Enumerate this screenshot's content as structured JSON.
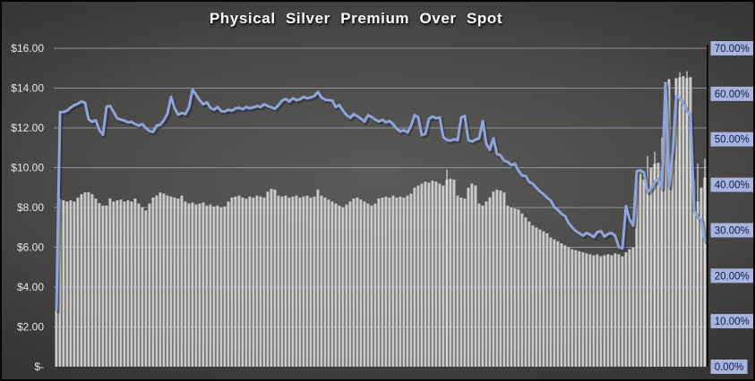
{
  "title": "Physical Silver Premium Over Spot",
  "colors": {
    "background_center": "#5b5a58",
    "background_edge": "#232322",
    "bar_fill": "#cac9c7",
    "bar_fill_light": "#dbdad8",
    "bar_fill_dark": "#b7b6b4",
    "wick_fill": "#e6e6e4",
    "line": "#8fa4d9",
    "line_shadow": "#1d2230",
    "gridline": "#c3cce9",
    "plot_border": "#0d0d0d",
    "title_text": "#fdfdfd",
    "left_tick_text": "#e8e8e8",
    "right_tick_text": "#131c38",
    "right_tick_chip": "#a6b4df"
  },
  "chart_data": {
    "type": "combo-bar-line",
    "title": "Physical Silver Premium Over Spot",
    "legend": "none",
    "grid": "horizontal",
    "left_axis": {
      "side": "left",
      "format": "USD",
      "range": [
        0,
        16
      ],
      "ticks": [
        {
          "label": "$16.00",
          "value": 16
        },
        {
          "label": "$14.00",
          "value": 14
        },
        {
          "label": "$12.00",
          "value": 12
        },
        {
          "label": "$10.00",
          "value": 10
        },
        {
          "label": "$8.00",
          "value": 8
        },
        {
          "label": "$6.00",
          "value": 6
        },
        {
          "label": "$4.00",
          "value": 4
        },
        {
          "label": "$2.00",
          "value": 2
        },
        {
          "label": "$-",
          "value": 0
        }
      ]
    },
    "right_axis": {
      "side": "right",
      "format": "percent",
      "range": [
        0,
        70
      ],
      "ticks": [
        {
          "label": "70.00%",
          "value": 70
        },
        {
          "label": "60.00%",
          "value": 60
        },
        {
          "label": "50.00%",
          "value": 50
        },
        {
          "label": "40.00%",
          "value": 40
        },
        {
          "label": "30.00%",
          "value": 30
        },
        {
          "label": "20.00%",
          "value": 20
        },
        {
          "label": "10.00%",
          "value": 10
        },
        {
          "label": "0.00%",
          "value": 0
        }
      ]
    },
    "bar_series_usd": [
      2.9,
      8.45,
      8.36,
      8.3,
      8.36,
      8.3,
      8.5,
      8.67,
      8.76,
      8.76,
      8.67,
      8.45,
      8.22,
      8.1,
      8.1,
      8.45,
      8.3,
      8.36,
      8.4,
      8.3,
      8.36,
      8.3,
      8.45,
      8.2,
      8.0,
      7.85,
      8.2,
      8.5,
      8.6,
      8.76,
      8.7,
      8.6,
      8.55,
      8.5,
      8.45,
      8.6,
      8.3,
      8.2,
      8.25,
      8.15,
      8.2,
      8.25,
      8.1,
      8.15,
      8.05,
      8.1,
      8.0,
      8.05,
      8.3,
      8.5,
      8.55,
      8.6,
      8.5,
      8.45,
      8.55,
      8.5,
      8.6,
      8.55,
      8.5,
      8.8,
      8.94,
      8.9,
      8.6,
      8.55,
      8.6,
      8.5,
      8.55,
      8.6,
      8.5,
      8.55,
      8.6,
      8.5,
      8.55,
      8.9,
      8.6,
      8.5,
      8.4,
      8.3,
      8.2,
      8.1,
      8.0,
      8.15,
      8.3,
      8.45,
      8.5,
      8.4,
      8.3,
      8.2,
      8.1,
      8.2,
      8.45,
      8.5,
      8.55,
      8.5,
      8.6,
      8.5,
      8.55,
      8.5,
      8.6,
      8.7,
      9.0,
      9.1,
      9.2,
      9.3,
      9.25,
      9.35,
      9.3,
      9.2,
      9.1,
      9.4,
      9.45,
      9.4,
      8.6,
      8.5,
      8.45,
      9.0,
      9.2,
      9.1,
      8.2,
      8.1,
      8.3,
      8.5,
      8.8,
      8.9,
      8.85,
      8.75,
      8.1,
      8.0,
      7.95,
      7.9,
      7.7,
      7.5,
      7.3,
      7.1,
      7.0,
      6.9,
      6.8,
      6.7,
      6.5,
      6.4,
      6.3,
      6.2,
      6.1,
      6.0,
      5.9,
      5.85,
      5.8,
      5.75,
      5.7,
      5.65,
      5.6,
      5.65,
      5.55,
      5.6,
      5.65,
      5.6,
      5.7,
      5.65,
      5.55,
      5.75,
      5.9,
      5.98,
      9.7,
      9.85,
      9.4,
      9.0,
      10.0,
      10.2,
      10.25,
      9.9,
      14.3,
      14.45,
      10.4,
      14.5,
      14.55,
      14.6,
      14.5,
      14.55,
      9.4,
      8.3,
      9.0,
      9.5
    ],
    "line_series_pct": [
      12.4,
      56.0,
      56.0,
      56.3,
      57.0,
      57.5,
      57.8,
      58.3,
      58.0,
      54.4,
      53.8,
      54.2,
      52.0,
      51.0,
      57.2,
      57.3,
      56.0,
      54.6,
      54.3,
      54.1,
      53.7,
      53.8,
      53.3,
      53.0,
      53.3,
      52.4,
      51.8,
      51.6,
      53.0,
      53.2,
      54.2,
      55.6,
      59.3,
      56.8,
      55.4,
      55.8,
      55.5,
      57.0,
      60.9,
      59.8,
      58.6,
      57.7,
      58.1,
      56.9,
      56.5,
      57.1,
      56.2,
      56.1,
      56.5,
      56.3,
      56.8,
      56.9,
      56.6,
      57.1,
      56.8,
      57.0,
      57.3,
      57.1,
      57.7,
      57.3,
      57.0,
      56.7,
      57.5,
      58.5,
      58.9,
      58.3,
      59.0,
      58.6,
      58.8,
      59.3,
      59.0,
      59.2,
      59.5,
      60.4,
      59.2,
      58.7,
      58.6,
      58.5,
      57.1,
      57.5,
      56.3,
      55.3,
      54.7,
      55.5,
      55.1,
      54.5,
      53.9,
      55.3,
      54.9,
      54.3,
      53.9,
      54.3,
      53.7,
      54.0,
      53.3,
      52.3,
      51.7,
      52.0,
      51.5,
      53.0,
      55.3,
      54.8,
      50.9,
      51.2,
      54.5,
      55.0,
      54.6,
      54.8,
      50.5,
      49.8,
      49.7,
      50.0,
      49.8,
      54.8,
      55.1,
      49.8,
      49.5,
      49.9,
      50.2,
      54.0,
      49.0,
      47.7,
      50.2,
      46.8,
      46.4,
      45.3,
      45.0,
      44.3,
      44.6,
      43.1,
      42.0,
      41.9,
      40.6,
      40.2,
      39.3,
      38.5,
      37.9,
      37.1,
      36.5,
      35.1,
      34.4,
      33.6,
      33.1,
      31.6,
      30.6,
      29.8,
      29.3,
      28.8,
      29.4,
      29.0,
      28.5,
      29.6,
      29.8,
      28.6,
      29.2,
      29.4,
      28.7,
      26.3,
      26.0,
      35.3,
      32.4,
      31.0,
      43.0,
      43.2,
      42.7,
      38.4,
      39.1,
      40.6,
      41.2,
      39.2,
      62.2,
      39.5,
      47.0,
      59.4,
      59.0,
      57.8,
      56.3,
      55.2,
      34.3,
      32.9,
      32.3,
      27.7
    ],
    "wick_spikes_usd": [
      {
        "index": 109,
        "value": 9.9
      },
      {
        "index": 165,
        "value": 10.6
      },
      {
        "index": 167,
        "value": 10.8
      },
      {
        "index": 169,
        "value": 11.5
      },
      {
        "index": 174,
        "value": 14.8
      },
      {
        "index": 176,
        "value": 14.85
      },
      {
        "index": 179,
        "value": 10.2
      },
      {
        "index": 181,
        "value": 10.45
      }
    ]
  }
}
